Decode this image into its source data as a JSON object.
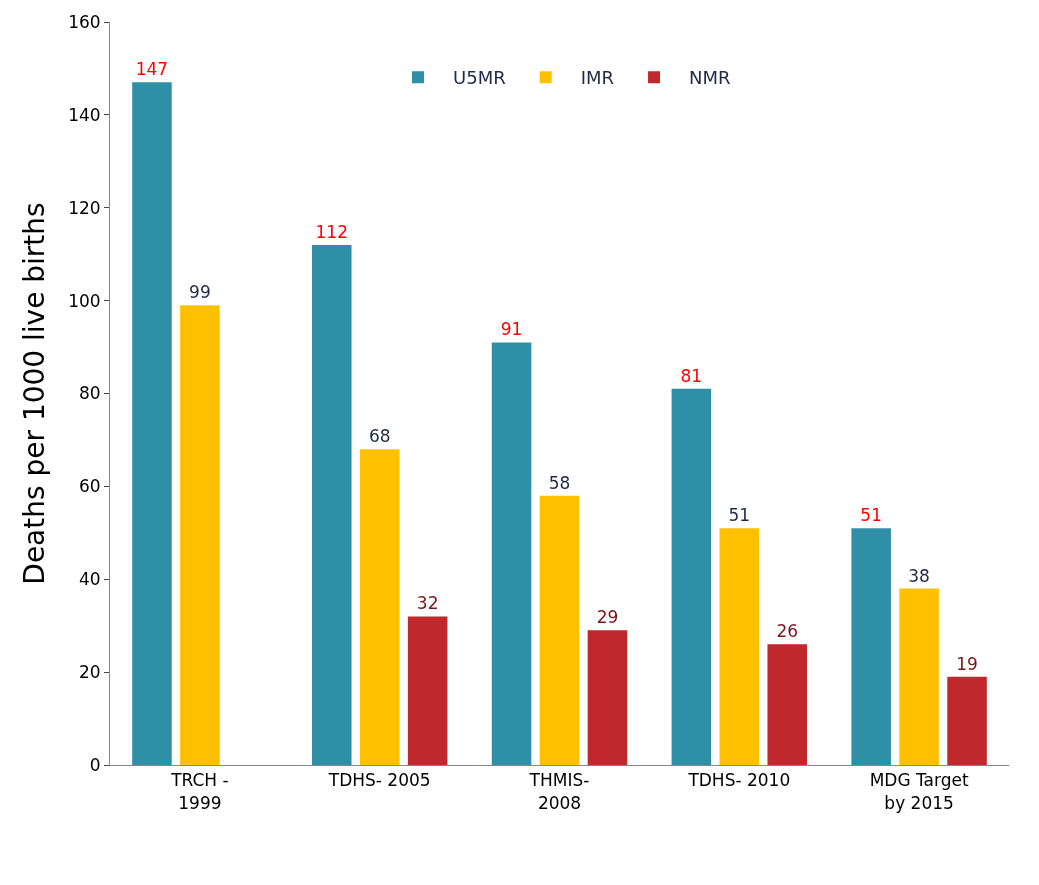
{
  "chart_data": {
    "type": "bar",
    "ylabel": "Deaths per 1000 live births",
    "categories": [
      "TRCH - 1999",
      "TDHS- 2005",
      "THMIS- 2008",
      "TDHS- 2010",
      "MDG Target by 2015"
    ],
    "series": [
      {
        "name": "U5MR",
        "color": "#2e8fa6",
        "values": [
          147,
          112,
          91,
          81,
          51
        ]
      },
      {
        "name": "IMR",
        "color": "#ffc000",
        "values": [
          99,
          68,
          58,
          51,
          38
        ]
      },
      {
        "name": "NMR",
        "color": "#c0282d",
        "values": [
          null,
          32,
          29,
          26,
          19
        ]
      }
    ],
    "ylim": [
      0,
      160
    ],
    "yticks": [
      0,
      20,
      40,
      60,
      80,
      100,
      120,
      140,
      160
    ],
    "legend": "top",
    "data_labels": true
  }
}
